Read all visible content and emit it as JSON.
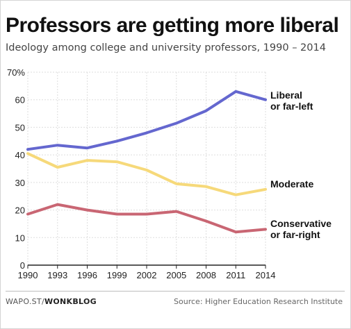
{
  "header": {
    "title": "Professors are getting more liberal",
    "subtitle": "Ideology among college and university professors, 1990 – 2014"
  },
  "footer": {
    "credit_prefix": "WAPO.ST/",
    "credit_brand": "WONKBLOG",
    "source": "Source: Higher Education Research Institute"
  },
  "chart_data": {
    "type": "line",
    "title": "Professors are getting more liberal",
    "subtitle": "Ideology among college and university professors, 1990 – 2014",
    "x": [
      1990,
      1993,
      1996,
      1999,
      2002,
      2005,
      2008,
      2011,
      2014
    ],
    "x_tick_labels": [
      "1990",
      "1993",
      "1996",
      "1999",
      "2002",
      "2005",
      "2008",
      "2011",
      "2014"
    ],
    "ylim": [
      0,
      70
    ],
    "y_ticks": [
      0,
      10,
      20,
      30,
      40,
      50,
      60,
      70
    ],
    "y_tick_labels": [
      "0",
      "10",
      "20",
      "30",
      "40",
      "50",
      "60",
      "70%"
    ],
    "grid": true,
    "legend": "direct labels at line ends",
    "series": [
      {
        "name": "Liberal or far-left",
        "label_lines": [
          "Liberal",
          "or far-left"
        ],
        "color": "#6467cf",
        "values": [
          42,
          43.5,
          42.5,
          45,
          48,
          51.5,
          56,
          63,
          60
        ]
      },
      {
        "name": "Moderate",
        "label_lines": [
          "Moderate"
        ],
        "color": "#f6d97a",
        "values": [
          40.5,
          35.5,
          38,
          37.5,
          34.5,
          29.5,
          28.5,
          25.5,
          27.5
        ]
      },
      {
        "name": "Conservative or far-right",
        "label_lines": [
          "Conservative",
          "or far-right"
        ],
        "color": "#c96673",
        "values": [
          18.5,
          22,
          20,
          18.5,
          18.5,
          19.5,
          16,
          12,
          13
        ]
      }
    ]
  }
}
